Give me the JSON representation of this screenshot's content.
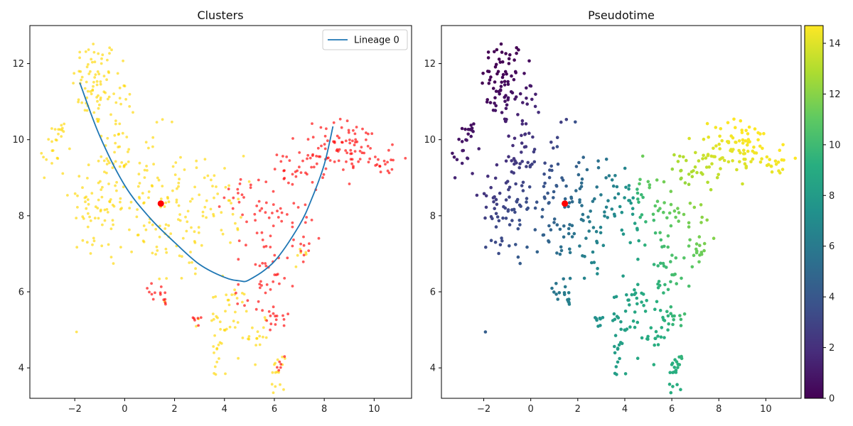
{
  "colors": {
    "cluster_yellow": "#FFD700",
    "cluster_red": "#FF0000",
    "lineage": "#1F77B4",
    "root_marker": "#FF0000",
    "axis": "#000000",
    "background": "#FFFFFF"
  },
  "chart_data": [
    {
      "type": "scatter",
      "title": "Clusters",
      "xlabel": "",
      "ylabel": "",
      "xlim": [
        -3.8,
        11.5
      ],
      "ylim": [
        3.2,
        13.0
      ],
      "xticks": [
        -2,
        0,
        2,
        4,
        6,
        8,
        10
      ],
      "yticks": [
        4,
        6,
        8,
        10,
        12
      ],
      "grid": false,
      "legend": {
        "placement": "top-right",
        "entries": [
          "Lineage 0"
        ]
      },
      "series": [
        {
          "name": "Lineage 0",
          "kind": "line",
          "color": "#1F77B4",
          "x": [
            -1.8,
            -1.0,
            0.0,
            1.0,
            2.0,
            3.0,
            4.0,
            4.6,
            5.0,
            6.0,
            7.0,
            7.5,
            8.0,
            8.35
          ],
          "y": [
            11.5,
            10.1,
            8.8,
            7.95,
            7.3,
            6.72,
            6.38,
            6.29,
            6.32,
            6.8,
            7.75,
            8.45,
            9.35,
            10.35
          ]
        }
      ],
      "clusters": [
        {
          "color": "#FFD700",
          "groups": [
            {
              "cx": -1.2,
              "cy": 11.5,
              "sx": 0.45,
              "sy": 0.6,
              "n": 70
            },
            {
              "cx": -0.3,
              "cy": 10.5,
              "sx": 0.35,
              "sy": 1.0,
              "n": 40
            },
            {
              "cx": -2.9,
              "cy": 9.7,
              "sx": 0.3,
              "sy": 0.4,
              "n": 15
            },
            {
              "cx": -2.6,
              "cy": 10.25,
              "sx": 0.12,
              "sy": 0.12,
              "n": 10
            },
            {
              "cx": -1.0,
              "cy": 8.3,
              "sx": 0.6,
              "sy": 0.8,
              "n": 70
            },
            {
              "cx": 0.8,
              "cy": 8.6,
              "sx": 0.8,
              "sy": 0.8,
              "n": 70
            },
            {
              "cx": 2.2,
              "cy": 7.6,
              "sx": 0.8,
              "sy": 0.8,
              "n": 50
            },
            {
              "cx": 3.7,
              "cy": 8.4,
              "sx": 0.55,
              "sy": 0.6,
              "n": 40
            },
            {
              "cx": 4.0,
              "cy": 5.4,
              "sx": 0.6,
              "sy": 0.4,
              "n": 35
            },
            {
              "cx": 3.7,
              "cy": 4.3,
              "sx": 0.12,
              "sy": 0.4,
              "n": 15
            },
            {
              "cx": 5.4,
              "cy": 4.9,
              "sx": 0.2,
              "sy": 0.35,
              "n": 15
            },
            {
              "cx": 6.1,
              "cy": 3.85,
              "sx": 0.15,
              "sy": 0.2,
              "n": 15
            },
            {
              "cx": 7.1,
              "cy": 6.8,
              "sx": 0.1,
              "sy": 0.2,
              "n": 6
            }
          ]
        },
        {
          "color": "#FF0000",
          "groups": [
            {
              "cx": 9.0,
              "cy": 9.8,
              "sx": 0.9,
              "sy": 0.35,
              "n": 80
            },
            {
              "cx": 10.5,
              "cy": 9.35,
              "sx": 0.25,
              "sy": 0.12,
              "n": 15
            },
            {
              "cx": 7.0,
              "cy": 9.3,
              "sx": 0.5,
              "sy": 0.35,
              "n": 30
            },
            {
              "cx": 6.0,
              "cy": 8.0,
              "sx": 0.5,
              "sy": 0.8,
              "n": 40
            },
            {
              "cx": 4.8,
              "cy": 8.5,
              "sx": 0.4,
              "sy": 0.3,
              "n": 20
            },
            {
              "cx": 7.2,
              "cy": 7.5,
              "sx": 0.2,
              "sy": 0.5,
              "n": 15
            },
            {
              "cx": 5.5,
              "cy": 6.1,
              "sx": 0.5,
              "sy": 0.5,
              "n": 30
            },
            {
              "cx": 6.0,
              "cy": 5.2,
              "sx": 0.3,
              "sy": 0.3,
              "n": 15
            },
            {
              "cx": 1.2,
              "cy": 6.0,
              "sx": 0.3,
              "sy": 0.15,
              "n": 10
            },
            {
              "cx": 1.6,
              "cy": 5.75,
              "sx": 0.08,
              "sy": 0.05,
              "n": 4
            },
            {
              "cx": 2.9,
              "cy": 5.25,
              "sx": 0.15,
              "sy": 0.15,
              "n": 6
            },
            {
              "cx": 6.2,
              "cy": 4.0,
              "sx": 0.1,
              "sy": 0.1,
              "n": 5
            }
          ]
        }
      ],
      "root_point": {
        "x": 1.45,
        "y": 8.32,
        "color": "#FF0000"
      }
    },
    {
      "type": "scatter",
      "title": "Pseudotime",
      "xlabel": "",
      "ylabel": "",
      "xlim": [
        -3.8,
        11.5
      ],
      "ylim": [
        3.2,
        13.0
      ],
      "xticks": [
        -2,
        0,
        2,
        4,
        6,
        8,
        10
      ],
      "yticks": [
        4,
        6,
        8,
        10,
        12
      ],
      "grid": false,
      "colormap": "viridis",
      "colorbar": {
        "range": [
          0,
          14.7
        ],
        "ticks": [
          0,
          2,
          4,
          6,
          8,
          10,
          12,
          14
        ]
      },
      "root_point": {
        "x": 1.45,
        "y": 8.32,
        "color": "#FF0000"
      }
    }
  ]
}
